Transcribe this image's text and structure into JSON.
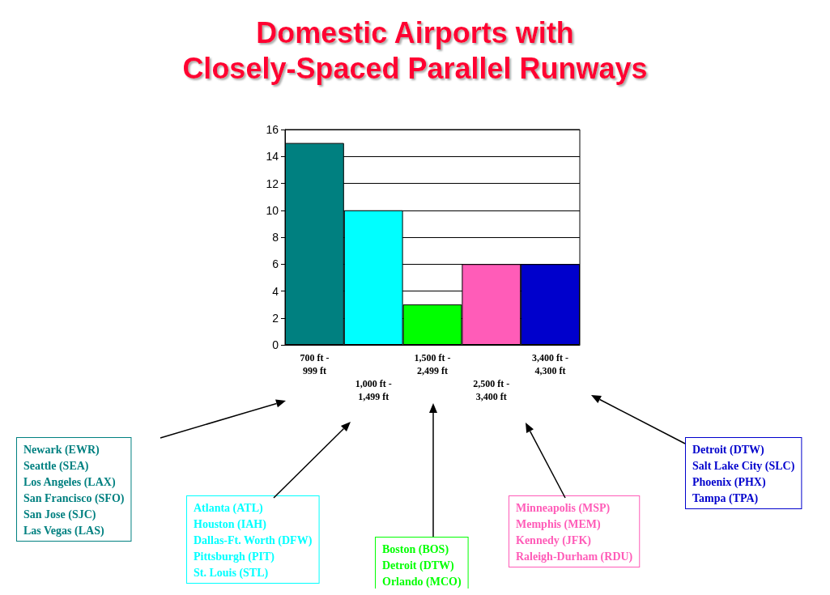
{
  "chart_data": {
    "type": "bar",
    "title": "Domestic Airports with\nClosely-Spaced Parallel Runways",
    "categories": [
      "700 ft -\n999 ft",
      "1,000 ft -\n1,499 ft",
      "1,500 ft -\n2,499 ft",
      "2,500 ft -\n3,400 ft",
      "3,400 ft -\n4,300 ft"
    ],
    "values": [
      15,
      10,
      3,
      6,
      6
    ],
    "colors": [
      "#008080",
      "#00ffff",
      "#00ff00",
      "#ff5cb8",
      "#0000cc"
    ],
    "ylim": [
      0,
      16
    ],
    "yticks": [
      0,
      2,
      4,
      6,
      8,
      10,
      12,
      14,
      16
    ],
    "grid": "y",
    "annotations": [
      "Newark (EWR)\nSeattle (SEA)\nLos Angeles (LAX)\nSan Francisco (SFO)\nSan Jose (SJC)\nLas Vegas (LAS)",
      "Atlanta (ATL)\nHouston (IAH)\nDallas-Ft. Worth (DFW)\nPittsburgh (PIT)\nSt. Louis (STL)",
      "Boston (BOS)\nDetroit (DTW)\nOrlando (MCO)",
      "Minneapolis (MSP)\nMemphis (MEM)\nKennedy (JFK)\nRaleigh-Durham (RDU)",
      "Detroit (DTW)\nSalt Lake City (SLC)\nPhoenix (PHX)\nTampa (TPA)"
    ]
  }
}
